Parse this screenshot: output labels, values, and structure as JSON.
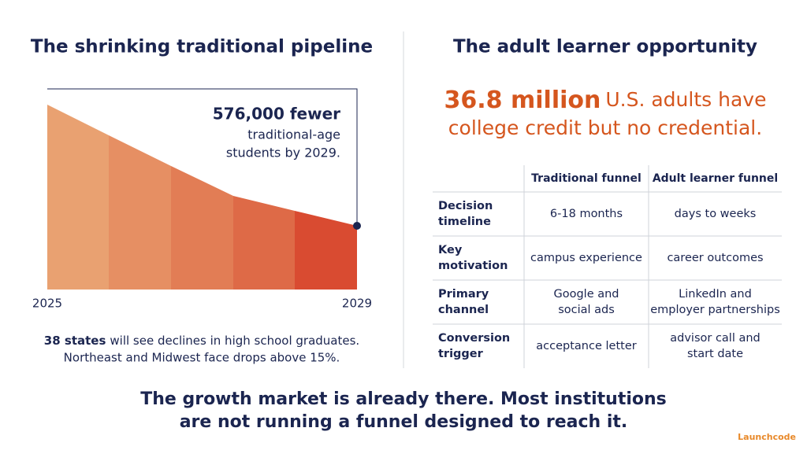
{
  "left": {
    "title": "The shrinking traditional pipeline",
    "annotation": {
      "headline": "576,000 fewer",
      "lines": [
        "traditional-age",
        "students by 2029."
      ]
    },
    "x_labels": [
      "2025",
      "2029"
    ],
    "note": {
      "bold": "38 states",
      "rest": "will see declines in high school graduates.",
      "line2": "Northeast and Midwest face drops above 15%."
    }
  },
  "right": {
    "title": "The adult learner opportunity",
    "headline": {
      "bold": "36.8 million",
      "rest": "U.S. adults have",
      "line2": "college credit but no credential."
    },
    "table": {
      "columns": [
        "Traditional funnel",
        "Adult learner funnel"
      ],
      "rows": [
        {
          "label": [
            "Decision",
            "timeline"
          ],
          "cells": [
            [
              "6-18 months"
            ],
            [
              "days to weeks"
            ]
          ]
        },
        {
          "label": [
            "Key",
            "motivation"
          ],
          "cells": [
            [
              "campus experience"
            ],
            [
              "career outcomes"
            ]
          ]
        },
        {
          "label": [
            "Primary",
            "channel"
          ],
          "cells": [
            [
              "Google and",
              "social ads"
            ],
            [
              "LinkedIn and",
              "employer partnerships"
            ]
          ]
        },
        {
          "label": [
            "Conversion",
            "trigger"
          ],
          "cells": [
            [
              "acceptance letter"
            ],
            [
              "advisor call and",
              "start date"
            ]
          ]
        }
      ]
    }
  },
  "footer": [
    "The growth market is already there. Most institutions",
    "are not running a funnel designed to reach it."
  ],
  "logo": "Launchcode"
}
